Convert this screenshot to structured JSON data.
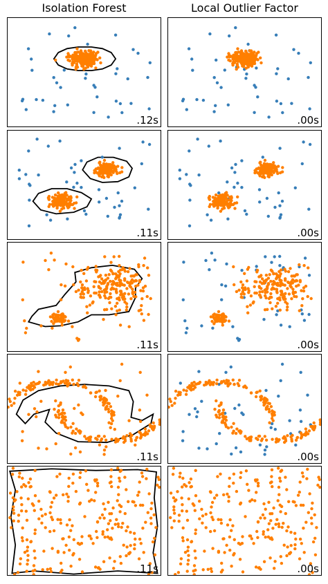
{
  "columns": [
    "Isolation Forest",
    "Local Outlier Factor"
  ],
  "colors": {
    "outlier": "#377eb8",
    "inlier": "#ff7f00",
    "boundary": "#000000"
  },
  "chart_data": [
    {
      "type": "scatter",
      "title": "Isolation Forest",
      "dataset": "single-blob",
      "method": "Isolation Forest",
      "xlim": [
        -7,
        7
      ],
      "ylim": [
        -7,
        7
      ],
      "time_label": ".12s",
      "boundary": true
    },
    {
      "type": "scatter",
      "title": "Local Outlier Factor",
      "dataset": "single-blob",
      "method": "Local Outlier Factor",
      "xlim": [
        -7,
        7
      ],
      "ylim": [
        -7,
        7
      ],
      "time_label": ".00s",
      "boundary": false
    },
    {
      "type": "scatter",
      "dataset": "two-blobs",
      "method": "Isolation Forest",
      "xlim": [
        -7,
        7
      ],
      "ylim": [
        -7,
        7
      ],
      "time_label": ".11s",
      "boundary": true
    },
    {
      "type": "scatter",
      "dataset": "two-blobs",
      "method": "Local Outlier Factor",
      "xlim": [
        -7,
        7
      ],
      "ylim": [
        -7,
        7
      ],
      "time_label": ".00s",
      "boundary": false
    },
    {
      "type": "scatter",
      "dataset": "uneven-blobs",
      "method": "Isolation Forest",
      "xlim": [
        -7,
        7
      ],
      "ylim": [
        -7,
        7
      ],
      "time_label": ".11s",
      "boundary": true
    },
    {
      "type": "scatter",
      "dataset": "uneven-blobs",
      "method": "Local Outlier Factor",
      "xlim": [
        -7,
        7
      ],
      "ylim": [
        -7,
        7
      ],
      "time_label": ".00s",
      "boundary": false
    },
    {
      "type": "scatter",
      "dataset": "moons",
      "method": "Isolation Forest",
      "xlim": [
        -7,
        7
      ],
      "ylim": [
        -7,
        7
      ],
      "time_label": ".11s",
      "boundary": true
    },
    {
      "type": "scatter",
      "dataset": "moons",
      "method": "Local Outlier Factor",
      "xlim": [
        -7,
        7
      ],
      "ylim": [
        -7,
        7
      ],
      "time_label": ".00s",
      "boundary": false
    },
    {
      "type": "scatter",
      "dataset": "uniform",
      "method": "Isolation Forest",
      "xlim": [
        -7,
        7
      ],
      "ylim": [
        -7,
        7
      ],
      "time_label": ".11s",
      "boundary": true
    },
    {
      "type": "scatter",
      "dataset": "uniform",
      "method": "Local Outlier Factor",
      "xlim": [
        -7,
        7
      ],
      "ylim": [
        -7,
        7
      ],
      "time_label": ".00s",
      "boundary": false
    }
  ]
}
